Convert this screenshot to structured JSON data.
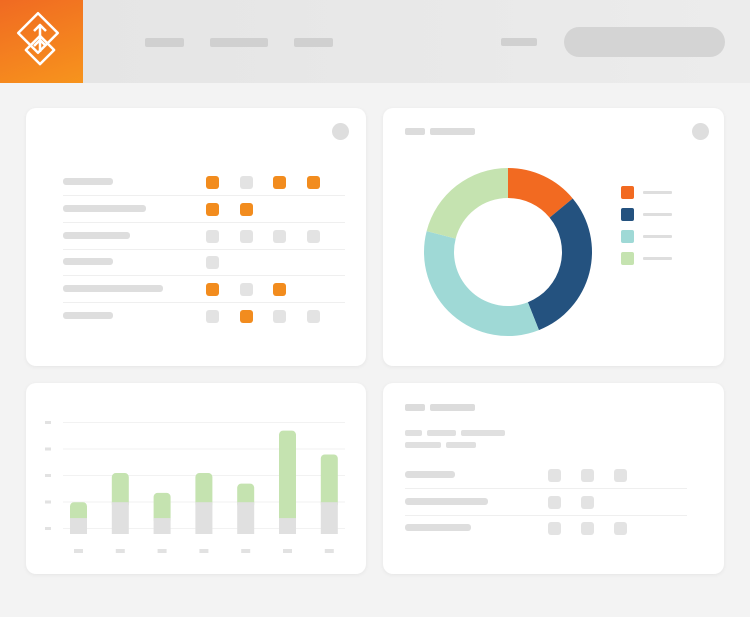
{
  "colors": {
    "accent": "#f28c1e",
    "brand_gradient": [
      "#f06a22",
      "#f7941d"
    ],
    "placeholder": "#d0d0d0",
    "dot_inactive": "#e3e3e3"
  },
  "header": {
    "logo_icon": "diamond-arrow-logo",
    "nav_items": 3,
    "search_pill": true
  },
  "table_card": {
    "rows": [
      [
        "orange",
        "gray",
        "orange",
        "orange"
      ],
      [
        "orange",
        "orange"
      ],
      [
        "gray",
        "gray",
        "gray",
        "gray"
      ],
      [
        "gray"
      ],
      [
        "orange",
        "gray",
        "orange"
      ],
      [
        "gray",
        "orange",
        "gray",
        "gray"
      ]
    ]
  },
  "chart_data": [
    {
      "type": "pie",
      "donut": true,
      "series": [
        {
          "value": 14,
          "color": "#f26a21"
        },
        {
          "value": 30,
          "color": "#24527f"
        },
        {
          "value": 35,
          "color": "#9fd9d6"
        },
        {
          "value": 21,
          "color": "#c5e3b0"
        }
      ],
      "legend": "right"
    },
    {
      "type": "bar",
      "stacked": true,
      "grid": true,
      "ylim": [
        0,
        4.5
      ],
      "series": [
        {
          "color": "#e0e0e0",
          "values": [
            0.6,
            1.2,
            0.6,
            1.2,
            1.2,
            0.6,
            1.2
          ]
        },
        {
          "color": "#c5e3b0",
          "values": [
            0.6,
            1.1,
            0.95,
            1.1,
            0.7,
            3.3,
            1.8
          ]
        }
      ]
    }
  ],
  "list_card": {
    "rows": [
      3,
      2,
      3
    ]
  }
}
